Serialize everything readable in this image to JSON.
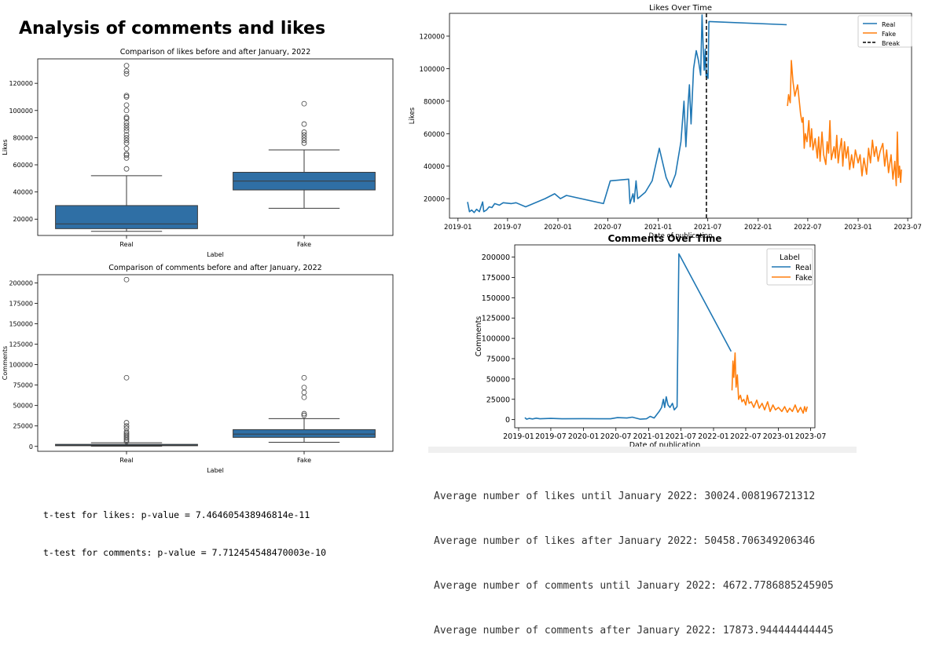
{
  "page": {
    "title": "Analysis of comments and likes"
  },
  "colors": {
    "real": "#1f77b4",
    "fake": "#ff7f0e",
    "box": "#2f6fa5",
    "break_line": "#000000"
  },
  "stats_left": [
    "t-test for likes: p-value = 7.464605438946814e-11",
    "t-test for comments: p-value = 7.712454548470003e-10"
  ],
  "stats_right": [
    "Average number of likes until January 2022: 30024.008196721312",
    "Average number of likes after January 2022: 50458.706349206346",
    "Average number of comments until January 2022: 4672.7786885245905",
    "Average number of comments after January 2022: 17873.944444444445"
  ],
  "chart_data": [
    {
      "type": "box",
      "title": "Comparison of likes before and after January, 2022",
      "xlabel": "Label",
      "ylabel": "Likes",
      "categories": [
        "Real",
        "Fake"
      ],
      "ylim": [
        8000,
        138000
      ],
      "yticks": [
        20000,
        40000,
        60000,
        80000,
        100000,
        120000
      ],
      "boxes": [
        {
          "name": "Real",
          "whisker_low": 11000,
          "q1": 13000,
          "median": 16500,
          "q3": 30000,
          "whisker_high": 52000,
          "outliers": [
            57000,
            65000,
            67000,
            68000,
            72000,
            76000,
            78000,
            80000,
            82000,
            85000,
            87000,
            89000,
            91000,
            94000,
            95000,
            100000,
            104000,
            110000,
            111000,
            127000,
            129000,
            133000
          ]
        },
        {
          "name": "Fake",
          "whisker_low": 28000,
          "q1": 41500,
          "median": 48000,
          "q3": 54500,
          "whisker_high": 71000,
          "outliers": [
            76000,
            78000,
            80000,
            82000,
            84000,
            90000,
            105000
          ]
        }
      ]
    },
    {
      "type": "box",
      "title": "Comparison of comments before and after January, 2022",
      "xlabel": "Label",
      "ylabel": "Comments",
      "categories": [
        "Real",
        "Fake"
      ],
      "ylim": [
        -6000,
        210000
      ],
      "yticks": [
        0,
        25000,
        50000,
        75000,
        100000,
        125000,
        150000,
        175000,
        200000
      ],
      "boxes": [
        {
          "name": "Real",
          "whisker_low": 200,
          "q1": 800,
          "median": 1500,
          "q3": 2500,
          "whisker_high": 4500,
          "outliers": [
            6000,
            8000,
            10000,
            12000,
            14000,
            16000,
            18000,
            22000,
            25000,
            29000,
            84000,
            204000
          ]
        },
        {
          "name": "Fake",
          "whisker_low": 5000,
          "q1": 11000,
          "median": 15000,
          "q3": 20500,
          "whisker_high": 34000,
          "outliers": [
            38000,
            40000,
            60000,
            66000,
            72000,
            84000
          ]
        }
      ]
    },
    {
      "type": "line",
      "title": "Likes Over Time",
      "xlabel": "Date of publication",
      "ylabel": "Likes",
      "xlim": [
        "2018-12-01",
        "2023-07-15"
      ],
      "ylim": [
        8000,
        134000
      ],
      "yticks": [
        20000,
        40000,
        60000,
        80000,
        100000,
        120000
      ],
      "xticks": [
        "2019-01",
        "2019-07",
        "2020-01",
        "2020-07",
        "2021-01",
        "2021-07",
        "2022-01",
        "2022-07",
        "2023-01",
        "2023-07"
      ],
      "legend": {
        "position": "top-right",
        "entries": [
          "Real",
          "Fake",
          "Break"
        ]
      },
      "break_date": "2021-06-26",
      "series": [
        {
          "name": "Real",
          "points": [
            [
              "2019-02-05",
              18000
            ],
            [
              "2019-02-12",
              12000
            ],
            [
              "2019-02-20",
              13000
            ],
            [
              "2019-03-01",
              11500
            ],
            [
              "2019-03-10",
              13500
            ],
            [
              "2019-03-20",
              12000
            ],
            [
              "2019-04-01",
              18000
            ],
            [
              "2019-04-05",
              12000
            ],
            [
              "2019-04-15",
              13000
            ],
            [
              "2019-04-25",
              15000
            ],
            [
              "2019-05-05",
              14500
            ],
            [
              "2019-05-15",
              17000
            ],
            [
              "2019-06-01",
              16000
            ],
            [
              "2019-06-15",
              17500
            ],
            [
              "2019-07-15",
              17000
            ],
            [
              "2019-08-01",
              17500
            ],
            [
              "2019-09-05",
              15000
            ],
            [
              "2019-11-15",
              20000
            ],
            [
              "2019-12-20",
              23000
            ],
            [
              "2020-01-10",
              20000
            ],
            [
              "2020-02-01",
              22000
            ],
            [
              "2020-06-15",
              17000
            ],
            [
              "2020-07-10",
              31000
            ],
            [
              "2020-09-15",
              32000
            ],
            [
              "2020-09-20",
              17000
            ],
            [
              "2020-10-01",
              23000
            ],
            [
              "2020-10-05",
              18000
            ],
            [
              "2020-10-12",
              31000
            ],
            [
              "2020-10-18",
              20000
            ],
            [
              "2020-11-15",
              24000
            ],
            [
              "2020-12-10",
              31000
            ],
            [
              "2021-01-05",
              51000
            ],
            [
              "2021-01-30",
              33000
            ],
            [
              "2021-02-15",
              27000
            ],
            [
              "2021-03-05",
              35000
            ],
            [
              "2021-03-25",
              55000
            ],
            [
              "2021-04-05",
              80000
            ],
            [
              "2021-04-12",
              52000
            ],
            [
              "2021-04-20",
              78000
            ],
            [
              "2021-04-25",
              90000
            ],
            [
              "2021-05-01",
              66000
            ],
            [
              "2021-05-10",
              100000
            ],
            [
              "2021-05-20",
              111000
            ],
            [
              "2021-05-28",
              105000
            ],
            [
              "2021-06-05",
              96000
            ],
            [
              "2021-06-10",
              133000
            ],
            [
              "2021-06-14",
              114000
            ],
            [
              "2021-06-18",
              99000
            ],
            [
              "2021-06-22",
              112000
            ],
            [
              "2021-06-25",
              95000
            ],
            [
              "2021-06-28",
              97000
            ],
            [
              "2021-07-02",
              94000
            ],
            [
              "2021-07-05",
              129000
            ],
            [
              "2022-04-15",
              127000
            ]
          ]
        },
        {
          "name": "Fake",
          "points": [
            [
              "2022-04-18",
              77000
            ],
            [
              "2022-04-22",
              84000
            ],
            [
              "2022-04-28",
              79000
            ],
            [
              "2022-05-02",
              105000
            ],
            [
              "2022-05-08",
              92000
            ],
            [
              "2022-05-15",
              83000
            ],
            [
              "2022-05-25",
              90000
            ],
            [
              "2022-06-05",
              72000
            ],
            [
              "2022-06-10",
              67000
            ],
            [
              "2022-06-14",
              70000
            ],
            [
              "2022-06-18",
              51000
            ],
            [
              "2022-06-22",
              60000
            ],
            [
              "2022-06-28",
              55000
            ],
            [
              "2022-07-05",
              68000
            ],
            [
              "2022-07-10",
              52000
            ],
            [
              "2022-07-15",
              63000
            ],
            [
              "2022-07-20",
              50000
            ],
            [
              "2022-07-28",
              57000
            ],
            [
              "2022-08-05",
              45000
            ],
            [
              "2022-08-10",
              58000
            ],
            [
              "2022-08-15",
              43000
            ],
            [
              "2022-08-22",
              61000
            ],
            [
              "2022-08-28",
              47000
            ],
            [
              "2022-09-05",
              41000
            ],
            [
              "2022-09-10",
              55000
            ],
            [
              "2022-09-15",
              48000
            ],
            [
              "2022-09-20",
              68000
            ],
            [
              "2022-09-25",
              44000
            ],
            [
              "2022-10-05",
              52000
            ],
            [
              "2022-10-10",
              45000
            ],
            [
              "2022-10-15",
              59000
            ],
            [
              "2022-10-20",
              42000
            ],
            [
              "2022-10-25",
              49000
            ],
            [
              "2022-11-01",
              57000
            ],
            [
              "2022-11-06",
              40000
            ],
            [
              "2022-11-12",
              55000
            ],
            [
              "2022-11-18",
              45000
            ],
            [
              "2022-11-25",
              52000
            ],
            [
              "2022-12-01",
              38000
            ],
            [
              "2022-12-08",
              47000
            ],
            [
              "2022-12-15",
              39000
            ],
            [
              "2022-12-22",
              50000
            ],
            [
              "2023-01-01",
              42000
            ],
            [
              "2023-01-08",
              47000
            ],
            [
              "2023-01-15",
              34000
            ],
            [
              "2023-01-22",
              45000
            ],
            [
              "2023-02-01",
              35000
            ],
            [
              "2023-02-08",
              51000
            ],
            [
              "2023-02-15",
              42000
            ],
            [
              "2023-02-22",
              56000
            ],
            [
              "2023-03-01",
              46000
            ],
            [
              "2023-03-08",
              52000
            ],
            [
              "2023-03-15",
              43000
            ],
            [
              "2023-03-22",
              49000
            ],
            [
              "2023-04-01",
              54000
            ],
            [
              "2023-04-08",
              40000
            ],
            [
              "2023-04-15",
              50000
            ],
            [
              "2023-04-22",
              36000
            ],
            [
              "2023-05-01",
              47000
            ],
            [
              "2023-05-08",
              32000
            ],
            [
              "2023-05-15",
              43000
            ],
            [
              "2023-05-20",
              28000
            ],
            [
              "2023-05-24",
              61000
            ],
            [
              "2023-05-28",
              33000
            ],
            [
              "2023-06-01",
              40000
            ],
            [
              "2023-06-05",
              30000
            ],
            [
              "2023-06-08",
              38000
            ]
          ]
        }
      ]
    },
    {
      "type": "line",
      "title": "Comments Over Time",
      "xlabel": "Date of publication",
      "ylabel": "Comments",
      "xlim": [
        "2018-12-10",
        "2023-07-25"
      ],
      "ylim": [
        -10000,
        215000
      ],
      "yticks": [
        0,
        25000,
        50000,
        75000,
        100000,
        125000,
        150000,
        175000,
        200000
      ],
      "xticks": [
        "2019-01",
        "2019-07",
        "2020-01",
        "2020-07",
        "2021-01",
        "2021-07",
        "2022-01",
        "2022-07",
        "2023-01",
        "2023-07"
      ],
      "legend": {
        "position": "top-right",
        "title": "Label",
        "entries": [
          "Real",
          "Fake"
        ]
      },
      "series": [
        {
          "name": "Real",
          "points": [
            [
              "2019-02-05",
              2500
            ],
            [
              "2019-02-15",
              500
            ],
            [
              "2019-03-01",
              1500
            ],
            [
              "2019-03-20",
              800
            ],
            [
              "2019-04-10",
              1800
            ],
            [
              "2019-05-01",
              1000
            ],
            [
              "2019-07-01",
              1500
            ],
            [
              "2019-09-01",
              1000
            ],
            [
              "2020-01-01",
              1200
            ],
            [
              "2020-06-01",
              1000
            ],
            [
              "2020-07-10",
              2500
            ],
            [
              "2020-09-01",
              2000
            ],
            [
              "2020-10-01",
              3000
            ],
            [
              "2020-11-15",
              500
            ],
            [
              "2020-12-20",
              1000
            ],
            [
              "2021-01-10",
              4000
            ],
            [
              "2021-02-01",
              2000
            ],
            [
              "2021-03-01",
              10000
            ],
            [
              "2021-03-15",
              15000
            ],
            [
              "2021-03-25",
              25000
            ],
            [
              "2021-04-01",
              15000
            ],
            [
              "2021-04-10",
              28000
            ],
            [
              "2021-04-20",
              18000
            ],
            [
              "2021-05-01",
              15000
            ],
            [
              "2021-05-15",
              20000
            ],
            [
              "2021-05-25",
              12000
            ],
            [
              "2021-06-10",
              16000
            ],
            [
              "2021-06-20",
              204000
            ],
            [
              "2022-04-10",
              84000
            ]
          ]
        },
        {
          "name": "Fake",
          "points": [
            [
              "2022-04-15",
              36000
            ],
            [
              "2022-04-20",
              72000
            ],
            [
              "2022-04-25",
              52000
            ],
            [
              "2022-05-02",
              82000
            ],
            [
              "2022-05-08",
              40000
            ],
            [
              "2022-05-15",
              55000
            ],
            [
              "2022-05-22",
              25000
            ],
            [
              "2022-06-01",
              30000
            ],
            [
              "2022-06-10",
              22000
            ],
            [
              "2022-06-20",
              25000
            ],
            [
              "2022-07-01",
              18000
            ],
            [
              "2022-07-10",
              30000
            ],
            [
              "2022-07-20",
              20000
            ],
            [
              "2022-08-01",
              22000
            ],
            [
              "2022-08-15",
              15000
            ],
            [
              "2022-09-01",
              24000
            ],
            [
              "2022-09-15",
              14000
            ],
            [
              "2022-10-01",
              20000
            ],
            [
              "2022-10-15",
              12000
            ],
            [
              "2022-11-01",
              22000
            ],
            [
              "2022-11-15",
              10000
            ],
            [
              "2022-12-01",
              18000
            ],
            [
              "2022-12-15",
              12000
            ],
            [
              "2023-01-01",
              15000
            ],
            [
              "2023-01-20",
              10000
            ],
            [
              "2023-02-05",
              16000
            ],
            [
              "2023-02-20",
              9000
            ],
            [
              "2023-03-05",
              14000
            ],
            [
              "2023-03-20",
              10000
            ],
            [
              "2023-04-05",
              18000
            ],
            [
              "2023-04-20",
              9000
            ],
            [
              "2023-05-05",
              15000
            ],
            [
              "2023-05-20",
              8000
            ],
            [
              "2023-05-28",
              16000
            ],
            [
              "2023-06-05",
              10000
            ],
            [
              "2023-06-12",
              16000
            ]
          ]
        }
      ]
    }
  ]
}
